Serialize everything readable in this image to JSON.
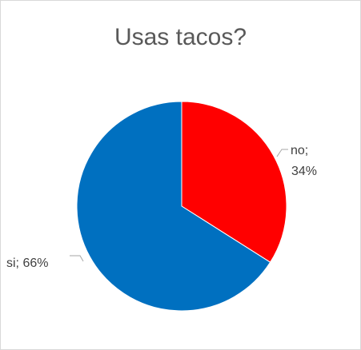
{
  "chart_data": {
    "type": "pie",
    "title": "Usas tacos?",
    "slices": [
      {
        "name": "no",
        "value": 34,
        "label": "no;",
        "percent_label": "34%",
        "color": "#ff0000"
      },
      {
        "name": "si",
        "value": 66,
        "label": "si; 66%",
        "color": "#0070c0"
      }
    ]
  }
}
